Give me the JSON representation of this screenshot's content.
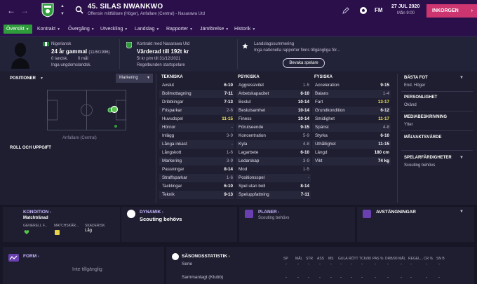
{
  "header": {
    "player_title": "45. SILAS NWANKWO",
    "player_subtitle": "Offensiv mittfältare (Höger), Anfallare (Central) - Nasarawa Utd",
    "logo": "FM",
    "date": "27 JUL 2020",
    "time": "Mån 9:00",
    "inbox_label": "INKORGEN",
    "icons": [
      "back-arrow-icon",
      "forward-arrow-icon",
      "club-badge-icon",
      "search-icon",
      "edit-icon",
      "football-icon"
    ]
  },
  "tabs": [
    {
      "label": "Översikt",
      "active": true
    },
    {
      "label": "Kontrakt"
    },
    {
      "label": "Övergång"
    },
    {
      "label": "Utveckling"
    },
    {
      "label": "Landslag"
    },
    {
      "label": "Rapporter"
    },
    {
      "label": "Jämförelse"
    },
    {
      "label": "Historik"
    }
  ],
  "info": {
    "nationality": "Nigeriansk",
    "age": "24 år gammal",
    "birth_date": "(11/6/1996)",
    "caps": "0 landsk.",
    "goals": "0 mål",
    "youth_caps": "Inga ungdomslandsk.",
    "contract_club": "Kontrakt med Nasarawa Utd",
    "value": "Värderad till 192t kr",
    "wage": "5t kr p/m till 31/12/2021",
    "reg": "Regelbunden startspelare",
    "intl_title": "Landslagssummering",
    "intl_text": "Inga nationella rapporter finns tillgängliga för...",
    "compare_button": "Bevaka spelare"
  },
  "positions": {
    "title": "POSITIONER",
    "select_value": "Markering",
    "position_label": "Anfallare (Central)",
    "role_title": "ROLL OCH UPPGIFT"
  },
  "attributes": {
    "technical_title": "TEKNISKA",
    "technical": [
      {
        "name": "Avslut",
        "value": "6-10"
      },
      {
        "name": "Bollmottagning",
        "value": "7-11"
      },
      {
        "name": "Dribblingar",
        "value": "7-13"
      },
      {
        "name": "Frisparkar",
        "value": "2-6",
        "low": true
      },
      {
        "name": "Huvudspel",
        "value": "11-15",
        "hi": true
      },
      {
        "name": "Hörnor",
        "value": "-",
        "low": true
      },
      {
        "name": "Inlägg",
        "value": "3-9",
        "low": true
      },
      {
        "name": "Långa inkast",
        "value": "-",
        "low": true
      },
      {
        "name": "Långskott",
        "value": "1-6",
        "low": true
      },
      {
        "name": "Markering",
        "value": "3-9",
        "low": true
      },
      {
        "name": "Passningar",
        "value": "8-14"
      },
      {
        "name": "Straffsparkar",
        "value": "1-6",
        "low": true
      },
      {
        "name": "Tacklingar",
        "value": "6-10"
      },
      {
        "name": "Teknik",
        "value": "9-13"
      }
    ],
    "mental_title": "PSYKISKA",
    "mental": [
      {
        "name": "Aggressivitet",
        "value": "1-5",
        "low": true
      },
      {
        "name": "Arbetskapacitet",
        "value": "6-10"
      },
      {
        "name": "Beslut",
        "value": "10-14"
      },
      {
        "name": "Beslutsamhet",
        "value": "10-14"
      },
      {
        "name": "Finess",
        "value": "10-14"
      },
      {
        "name": "Förutseende",
        "value": "9-15"
      },
      {
        "name": "Koncentration",
        "value": "5-9",
        "low": true
      },
      {
        "name": "Kyla",
        "value": "4-8",
        "low": true
      },
      {
        "name": "Lagarbete",
        "value": "6-10"
      },
      {
        "name": "Ledarskap",
        "value": "3-9",
        "low": true
      },
      {
        "name": "Mod",
        "value": "1-5",
        "low": true
      },
      {
        "name": "Positionsspel",
        "value": "-",
        "low": true
      },
      {
        "name": "Spel utan boll",
        "value": "8-14"
      },
      {
        "name": "Speluppfattning",
        "value": "7-11"
      }
    ],
    "physical_title": "FYSISKA",
    "physical": [
      {
        "name": "Acceleration",
        "value": "9-15"
      },
      {
        "name": "Balans",
        "value": "1-4",
        "low": true
      },
      {
        "name": "Fart",
        "value": "13-17",
        "hi": true
      },
      {
        "name": "Grundkondition",
        "value": "6-12"
      },
      {
        "name": "Smidighet",
        "value": "11-17",
        "hi": true
      },
      {
        "name": "Spänst",
        "value": "4-8",
        "low": true
      },
      {
        "name": "Styrka",
        "value": "6-10"
      },
      {
        "name": "Uthållighet",
        "value": "11-15"
      },
      {
        "name": "Längd",
        "value": "180 cm"
      },
      {
        "name": "Vikt",
        "value": "74 kg"
      }
    ]
  },
  "right_column": [
    {
      "title": "BÄSTA FOT",
      "value": "End. Höger"
    },
    {
      "title": "PERSONLIGHET",
      "value": "Okänd"
    },
    {
      "title": "MEDIABESKRIVNING",
      "value": "Ytter"
    },
    {
      "title": "MÅLVAKTSVÄRDE",
      "value": ""
    },
    {
      "title": "SPELARFÄRDIGHETER",
      "value": "Scouting behövs"
    }
  ],
  "panels": {
    "condition_title": "KONDITION",
    "condition_value": "Matchtränad",
    "cond_cols": [
      "GENERELL F...",
      "MATCHSKÄR...",
      "SKADERISK"
    ],
    "injury_risk": "Låg",
    "dynamics_title": "DYNAMIK",
    "dynamics_value": "Scouting behövs",
    "plans_title": "PLANER",
    "plans_value": "Scouting behövs",
    "suspensions_title": "AVSTÄNGNINGAR",
    "form_title": "FORM",
    "form_value": "Inte tillgänglig",
    "season_title": "SÄSONGSSTATISTIK",
    "season_cols": [
      "SP",
      "MÅL",
      "STR",
      "ASS",
      "MS",
      "GULA",
      "RÖTT",
      "TCK/90",
      "PAS %",
      "DRB/90",
      "MÅL",
      "REGEL...",
      "CR %",
      "SN B"
    ],
    "row_series": "Serie",
    "row_total": "Sammanlagt (Klubb)"
  },
  "colors": {
    "header": "#2a0f4a",
    "active_tab": "#2f9c3c",
    "inbox": "#cc3570",
    "highlight": "#f2e45c",
    "panel_title": "#c9b6ff"
  }
}
